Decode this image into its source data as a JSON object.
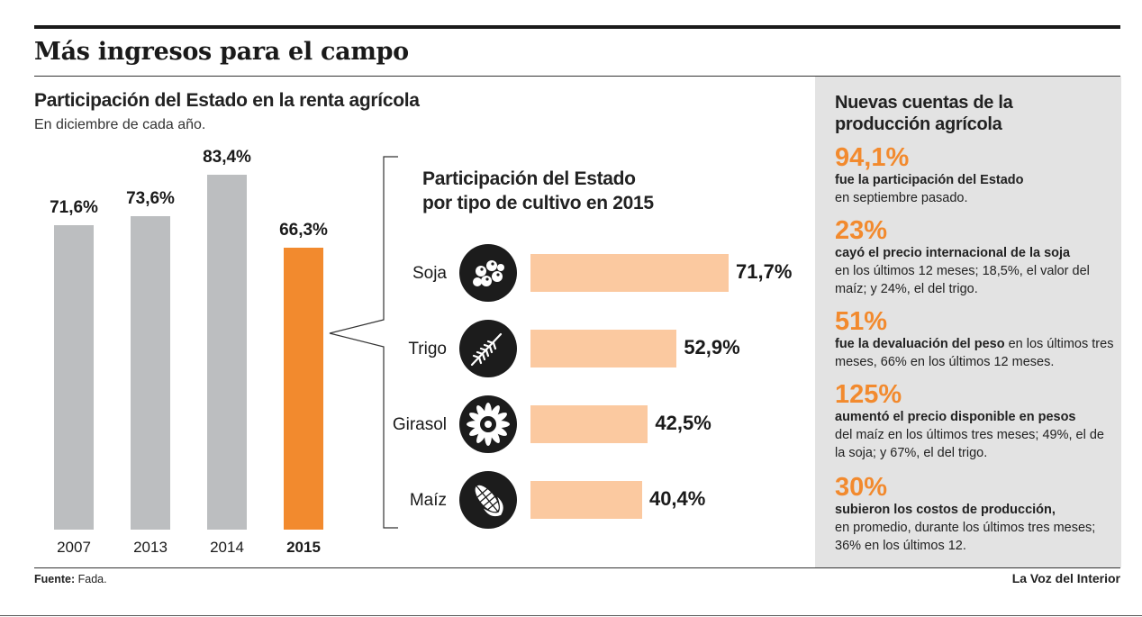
{
  "title": "Más ingresos para el campo",
  "chart_data": [
    {
      "type": "bar",
      "title": "Participación del Estado en la renta agrícola",
      "subtitle": "En diciembre de cada año.",
      "categories": [
        "2007",
        "2013",
        "2014",
        "2015"
      ],
      "values": [
        71.6,
        73.6,
        83.4,
        66.3
      ],
      "value_labels": [
        "71,6%",
        "73,6%",
        "83,4%",
        "66,3%"
      ],
      "highlight_index": 3,
      "colors": {
        "default": "#bcbec0",
        "highlight": "#f28a2e"
      },
      "ylim": [
        0,
        100
      ]
    },
    {
      "type": "bar",
      "orientation": "horizontal",
      "title_lines": [
        "Participación del Estado",
        "por tipo de cultivo en 2015"
      ],
      "categories": [
        "Soja",
        "Trigo",
        "Girasol",
        "Maíz"
      ],
      "icons": [
        "soybean-icon",
        "wheat-icon",
        "sunflower-icon",
        "corn-icon"
      ],
      "values": [
        71.7,
        52.9,
        42.5,
        40.4
      ],
      "value_labels": [
        "71,7%",
        "52,9%",
        "42,5%",
        "40,4%"
      ],
      "color": "#fbc9a0",
      "xlim": [
        0,
        100
      ]
    }
  ],
  "side": {
    "title_lines": [
      "Nuevas cuentas de la",
      "producción agrícola"
    ],
    "facts": [
      {
        "big": "94,1%",
        "bold": "fue la participación del Estado",
        "rest": "en septiembre pasado."
      },
      {
        "big": "23%",
        "bold": "cayó el precio internacional de la soja",
        "rest": "en los últimos 12 meses; 18,5%, el valor del maíz; y 24%, el del trigo."
      },
      {
        "big": "51%",
        "bold": "fue la devaluación del peso",
        "rest": " en los últimos tres meses, 66% en los últimos 12 meses."
      },
      {
        "big": "125%",
        "bold": "aumentó el precio disponible en pesos",
        "rest": "del maíz en los últimos tres meses; 49%, el de la soja; y 67%, el del trigo."
      },
      {
        "big": "30%",
        "bold": "subieron los costos de producción,",
        "rest": "en promedio, durante los últimos tres meses; 36% en los últimos 12."
      }
    ]
  },
  "footer": {
    "source_label": "Fuente:",
    "source_value": " Fada.",
    "brand": "La Voz del Interior"
  },
  "accent_color": "#f28a2e"
}
